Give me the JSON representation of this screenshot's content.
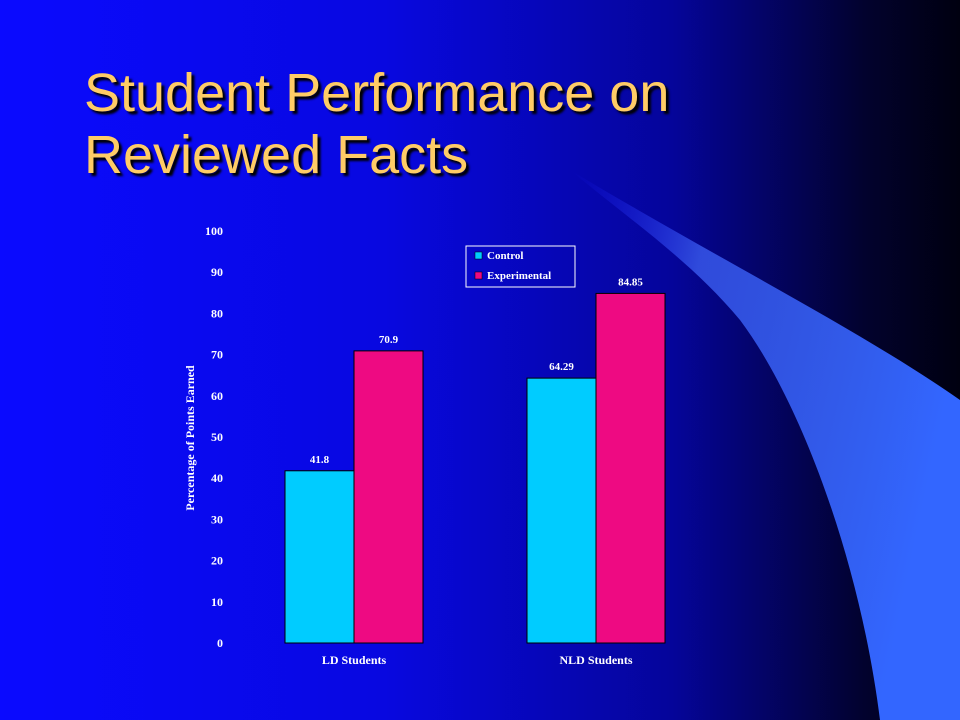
{
  "slide": {
    "title_line1": "Student Performance on",
    "title_line2": "Reviewed Facts"
  },
  "colors": {
    "title": "#ffcc66",
    "control": "#00ccff",
    "experimental": "#ee0a82",
    "swoosh": "#3366ff"
  },
  "chart_data": {
    "type": "bar",
    "categories": [
      "LD Students",
      "NLD Students"
    ],
    "series": [
      {
        "name": "Control",
        "values": [
          41.8,
          64.29
        ],
        "labels": [
          "41.8",
          "64.29"
        ]
      },
      {
        "name": "Experimental",
        "values": [
          70.9,
          84.85
        ],
        "labels": [
          "70.9",
          "84.85"
        ]
      }
    ],
    "ylabel": "Percentage of Points Earned",
    "ylim": [
      0,
      100
    ],
    "yticks": [
      0,
      10,
      20,
      30,
      40,
      50,
      60,
      70,
      80,
      90,
      100
    ],
    "legend": "top-right",
    "grid": false
  }
}
